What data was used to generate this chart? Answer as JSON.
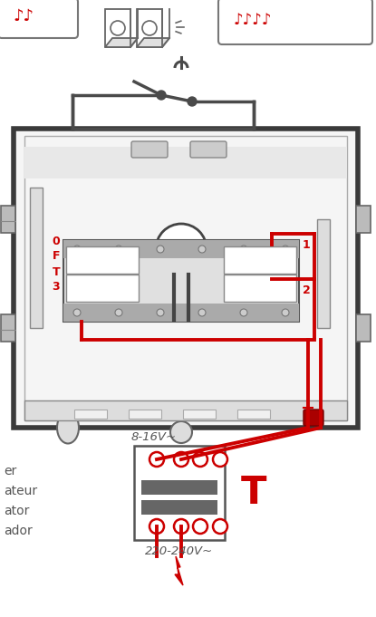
{
  "bg_color": "#ffffff",
  "dark": "#4a4a4a",
  "red": "#cc0000",
  "gray_fill": "#f0f0f0",
  "gray_mid": "#999999",
  "gray_dark": "#555555",
  "label_8_16v": "8-16V~",
  "label_220_240v": "220-240V~",
  "label_T": "T",
  "label_left": [
    "er",
    "ateur",
    "ator",
    "ador"
  ],
  "label_OFT3": [
    "0",
    "F",
    "T",
    "3"
  ],
  "label_12": [
    "1",
    "2"
  ],
  "figsize": [
    4.15,
    6.81
  ],
  "dpi": 100
}
